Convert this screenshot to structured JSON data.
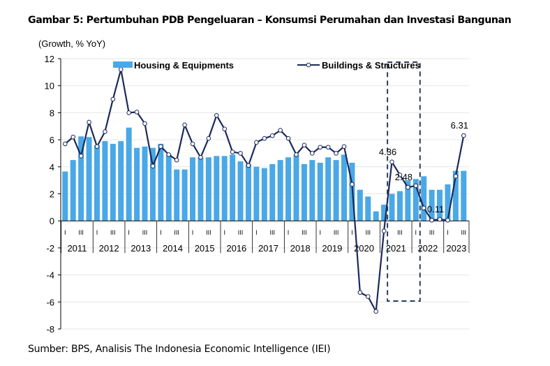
{
  "title": "Gambar 5: Pertumbuhan PDB Pengeluaran – Konsumsi Perumahan dan Investasi Bangunan",
  "source": "Sumber: BPS, Analisis The Indonesia Economic Intelligence (IEI)",
  "colors": {
    "bar": "#4aa8e6",
    "line": "#1c2a5a",
    "grid": "#e6e6e6",
    "highlight_box": "#2b3e5c"
  },
  "chart_data": {
    "type": "bar+line",
    "title": "Gambar 5: Pertumbuhan PDB Pengeluaran – Konsumsi Perumahan dan Investasi Bangunan",
    "ylabel": "(Growth, % YoY)",
    "xlabel": "",
    "ylim": [
      -8,
      12
    ],
    "yticks": [
      -8,
      -6,
      -4,
      -2,
      0,
      2,
      4,
      6,
      8,
      10,
      12
    ],
    "grid": true,
    "legend_placement": "top",
    "years": [
      "2011",
      "2012",
      "2013",
      "2014",
      "2015",
      "2016",
      "2017",
      "2018",
      "2019",
      "2020",
      "2021",
      "2022",
      "2023"
    ],
    "quarter_marks": [
      "I",
      "III"
    ],
    "x": [
      "2011Q1",
      "2011Q2",
      "2011Q3",
      "2011Q4",
      "2012Q1",
      "2012Q2",
      "2012Q3",
      "2012Q4",
      "2013Q1",
      "2013Q2",
      "2013Q3",
      "2013Q4",
      "2014Q1",
      "2014Q2",
      "2014Q3",
      "2014Q4",
      "2015Q1",
      "2015Q2",
      "2015Q3",
      "2015Q4",
      "2016Q1",
      "2016Q2",
      "2016Q3",
      "2016Q4",
      "2017Q1",
      "2017Q2",
      "2017Q3",
      "2017Q4",
      "2018Q1",
      "2018Q2",
      "2018Q3",
      "2018Q4",
      "2019Q1",
      "2019Q2",
      "2019Q3",
      "2019Q4",
      "2020Q1",
      "2020Q2",
      "2020Q3",
      "2020Q4",
      "2021Q1",
      "2021Q2",
      "2021Q3",
      "2021Q4",
      "2022Q1",
      "2022Q2",
      "2022Q3",
      "2022Q4",
      "2023Q1",
      "2023Q2",
      "2023Q3"
    ],
    "series": [
      {
        "name": "Housing & Equipments",
        "type": "bar",
        "values": [
          3.65,
          4.5,
          6.25,
          6.2,
          5.6,
          5.9,
          5.7,
          5.9,
          6.9,
          5.4,
          5.5,
          5.4,
          5.7,
          4.9,
          3.8,
          3.8,
          4.7,
          4.7,
          4.7,
          4.8,
          4.8,
          4.9,
          4.4,
          4.2,
          4.0,
          3.9,
          4.2,
          4.5,
          4.7,
          4.9,
          4.2,
          4.5,
          4.3,
          4.7,
          4.5,
          4.9,
          4.3,
          2.3,
          1.8,
          0.7,
          1.2,
          2.0,
          2.2,
          3.0,
          3.1,
          3.3,
          2.3,
          2.3,
          2.7,
          3.7,
          3.7
        ]
      },
      {
        "name": "Buildings & Structures",
        "type": "line",
        "values": [
          5.7,
          6.2,
          4.8,
          7.3,
          5.5,
          6.6,
          9.0,
          11.2,
          8.0,
          8.05,
          7.2,
          4.05,
          5.5,
          4.9,
          4.5,
          7.1,
          5.7,
          4.7,
          6.1,
          7.8,
          6.8,
          5.1,
          5.0,
          4.1,
          5.8,
          6.1,
          6.3,
          6.7,
          6.1,
          4.9,
          5.6,
          5.0,
          5.45,
          5.45,
          5.0,
          5.5,
          2.7,
          -5.3,
          -5.6,
          -6.7,
          -0.75,
          4.36,
          3.4,
          2.48,
          2.6,
          0.95,
          0.05,
          0.11,
          0.05,
          3.3,
          6.31
        ]
      }
    ],
    "annotations": [
      {
        "x": "2021Q2",
        "text": "4.36"
      },
      {
        "x": "2021Q4",
        "text": "2.48"
      },
      {
        "x": "2022Q4",
        "text": "0.11"
      },
      {
        "x": "2023Q3",
        "text": "6.31"
      }
    ],
    "highlight": {
      "from": "2021Q1",
      "to": "2022Q1",
      "style": "dashed box"
    }
  }
}
